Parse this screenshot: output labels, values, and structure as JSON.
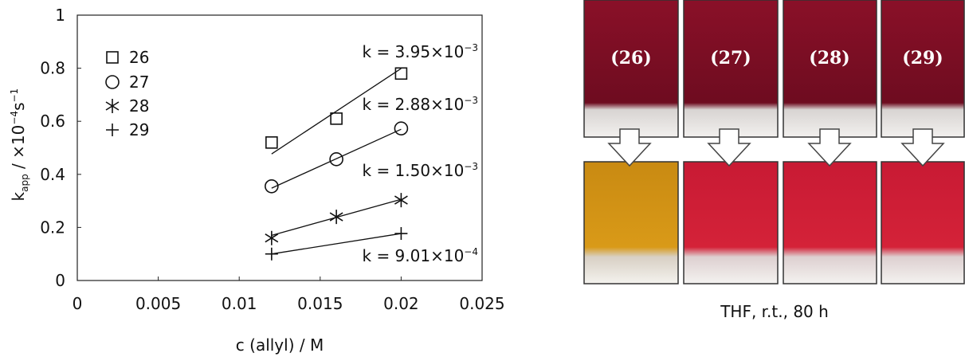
{
  "chart_data": {
    "type": "scatter",
    "xlabel": "c (allyl) / M",
    "ylabel_parts": [
      "k",
      "app",
      " / ×10",
      "−4",
      "s",
      "−1"
    ],
    "xlim": [
      0,
      0.025
    ],
    "xticks": [
      0,
      0.005,
      0.01,
      0.015,
      0.02,
      0.025
    ],
    "ylim": [
      0,
      1
    ],
    "yticks": [
      0,
      0.2,
      0.4,
      0.6,
      0.8,
      1
    ],
    "series": [
      {
        "name": "26",
        "marker": "square",
        "color": "#111",
        "x": [
          0.012,
          0.016,
          0.02
        ],
        "values": [
          0.52,
          0.61,
          0.78
        ],
        "fit_x": [
          0.012,
          0.02
        ],
        "fit": [
          0.477,
          0.799
        ],
        "annotation": "k = 3.95×10",
        "annotation_exp": "−3"
      },
      {
        "name": "27",
        "marker": "circle",
        "color": "#111",
        "x": [
          0.012,
          0.016,
          0.02
        ],
        "values": [
          0.355,
          0.457,
          0.573
        ],
        "fit_x": [
          0.012,
          0.02
        ],
        "fit": [
          0.348,
          0.57
        ],
        "annotation": "k = 2.88×10",
        "annotation_exp": "−3"
      },
      {
        "name": "28",
        "marker": "asterisk",
        "color": "#111",
        "x": [
          0.012,
          0.016,
          0.02
        ],
        "values": [
          0.16,
          0.24,
          0.303
        ],
        "fit_x": [
          0.012,
          0.02
        ],
        "fit": [
          0.17,
          0.306
        ],
        "annotation": "k = 1.50×10",
        "annotation_exp": "−3"
      },
      {
        "name": "29",
        "marker": "plus",
        "color": "#111",
        "x": [
          0.012,
          0.02
        ],
        "values": [
          0.1,
          0.177
        ],
        "fit_x": [
          0.012,
          0.02
        ],
        "fit": [
          0.1,
          0.177
        ],
        "annotation": "k = 9.01×10",
        "annotation_exp": "−4"
      }
    ]
  },
  "photos": {
    "labels": [
      "(26)",
      "(27)",
      "(28)",
      "(29)"
    ],
    "caption": "THF, r.t., 80 h"
  }
}
